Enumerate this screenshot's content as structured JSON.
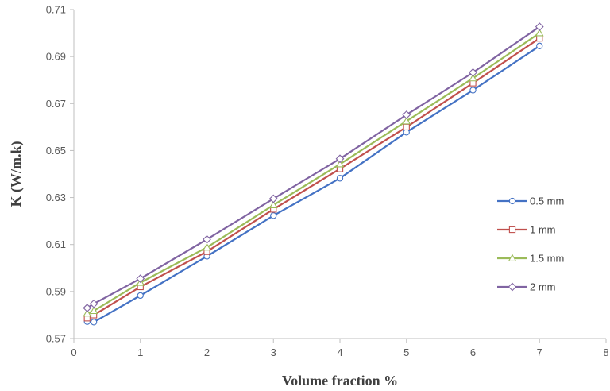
{
  "chart_data": {
    "type": "line",
    "title": "",
    "xlabel": "Volume fraction %",
    "ylabel": "K (W/m.k)",
    "xlim": [
      0,
      8
    ],
    "ylim": [
      0.57,
      0.71
    ],
    "x_ticks": [
      0,
      1,
      2,
      3,
      4,
      5,
      6,
      7,
      8
    ],
    "y_ticks": [
      0.57,
      0.59,
      0.61,
      0.63,
      0.65,
      0.67,
      0.69,
      0.71
    ],
    "grid": false,
    "legend_position": "right",
    "x": [
      0.2,
      0.3,
      1,
      2,
      3,
      4,
      5,
      6,
      7
    ],
    "series": [
      {
        "name": "0.5 mm",
        "color": "#4472C4",
        "marker": "circle",
        "values": [
          0.5772,
          0.577,
          0.5883,
          0.605,
          0.6223,
          0.6382,
          0.6578,
          0.6757,
          0.6945
        ]
      },
      {
        "name": "1 mm",
        "color": "#C0504D",
        "marker": "square",
        "values": [
          0.5787,
          0.58,
          0.592,
          0.607,
          0.625,
          0.6422,
          0.66,
          0.6787,
          0.6978
        ]
      },
      {
        "name": "1.5 mm",
        "color": "#9BBB59",
        "marker": "triangle",
        "values": [
          0.5807,
          0.5818,
          0.5938,
          0.6088,
          0.6268,
          0.6442,
          0.6625,
          0.6808,
          0.7
        ]
      },
      {
        "name": "2 mm",
        "color": "#8064A2",
        "marker": "diamond",
        "values": [
          0.583,
          0.5848,
          0.5955,
          0.6122,
          0.6295,
          0.6465,
          0.6652,
          0.6832,
          0.7027
        ]
      }
    ]
  }
}
